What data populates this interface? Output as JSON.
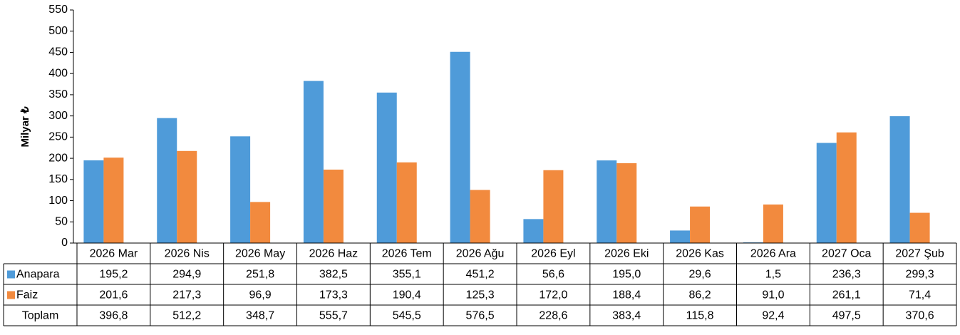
{
  "chart_data": {
    "type": "bar",
    "y_axis_label": "Milyar ₺",
    "categories": [
      "2026 Mar",
      "2026 Nis",
      "2026 May",
      "2026 Haz",
      "2026 Tem",
      "2026 Ağu",
      "2026 Eyl",
      "2026 Eki",
      "2026 Kas",
      "2026 Ara",
      "2027 Oca",
      "2027 Şub"
    ],
    "series": [
      {
        "name": "Anapara",
        "color": "#4f9bd9",
        "values": [
          195.2,
          294.9,
          251.8,
          382.5,
          355.1,
          451.2,
          56.6,
          195.0,
          29.6,
          1.5,
          236.3,
          299.3
        ],
        "value_labels": [
          "195,2",
          "294,9",
          "251,8",
          "382,5",
          "355,1",
          "451,2",
          "56,6",
          "195,0",
          "29,6",
          "1,5",
          "236,3",
          "299,3"
        ]
      },
      {
        "name": "Faiz",
        "color": "#f28a3e",
        "values": [
          201.6,
          217.3,
          96.9,
          173.3,
          190.4,
          125.3,
          172.0,
          188.4,
          86.2,
          91.0,
          261.1,
          71.4
        ],
        "value_labels": [
          "201,6",
          "217,3",
          "96,9",
          "173,3",
          "190,4",
          "125,3",
          "172,0",
          "188,4",
          "86,2",
          "91,0",
          "261,1",
          "71,4"
        ]
      },
      {
        "name": "Toplam",
        "values": [
          396.8,
          512.2,
          348.7,
          555.7,
          545.5,
          576.5,
          228.6,
          383.4,
          115.8,
          92.4,
          497.5,
          370.6
        ],
        "value_labels": [
          "396,8",
          "512,2",
          "348,7",
          "555,7",
          "545,5",
          "576,5",
          "228,6",
          "383,4",
          "115,8",
          "92,4",
          "497,5",
          "370,6"
        ]
      }
    ],
    "ylim": [
      0,
      550
    ],
    "yticks": [
      0,
      50,
      100,
      150,
      200,
      250,
      300,
      350,
      400,
      450,
      500,
      550
    ]
  }
}
